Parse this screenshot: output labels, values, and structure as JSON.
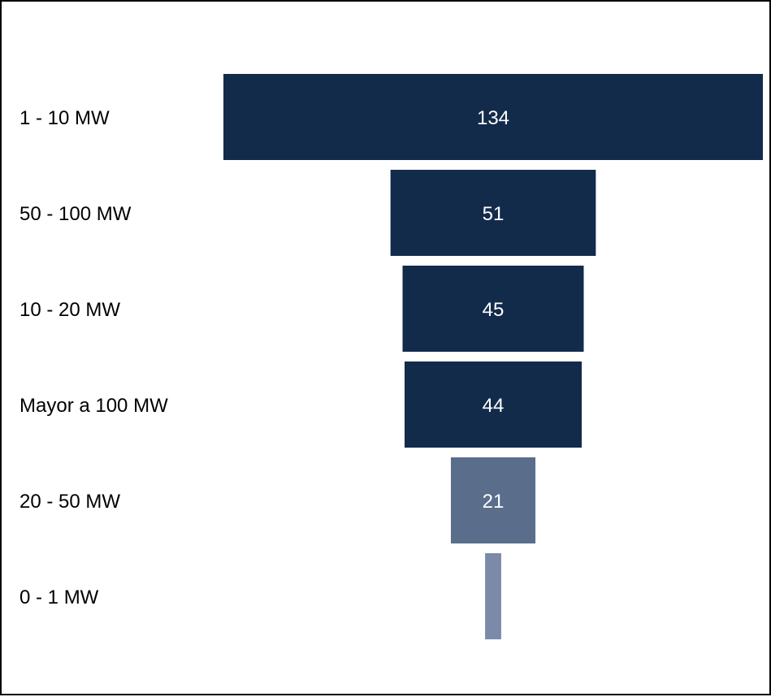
{
  "chart_data": {
    "type": "bar",
    "orientation": "funnel",
    "categories": [
      "1 - 10 MW",
      "50 - 100 MW",
      "10 - 20 MW",
      "Mayor a 100 MW",
      "20 - 50 MW",
      "0 - 1 MW"
    ],
    "values": [
      134,
      51,
      45,
      44,
      21,
      4
    ],
    "data_labels": [
      "134",
      "51",
      "45",
      "44",
      "21",
      ""
    ],
    "colors": [
      "#132b4b",
      "#132b4b",
      "#132b4b",
      "#132b4b",
      "#5a6d8b",
      "#7b8aa8"
    ],
    "title": "",
    "xlabel": "",
    "ylabel": "",
    "grid": false,
    "legend": "none"
  }
}
